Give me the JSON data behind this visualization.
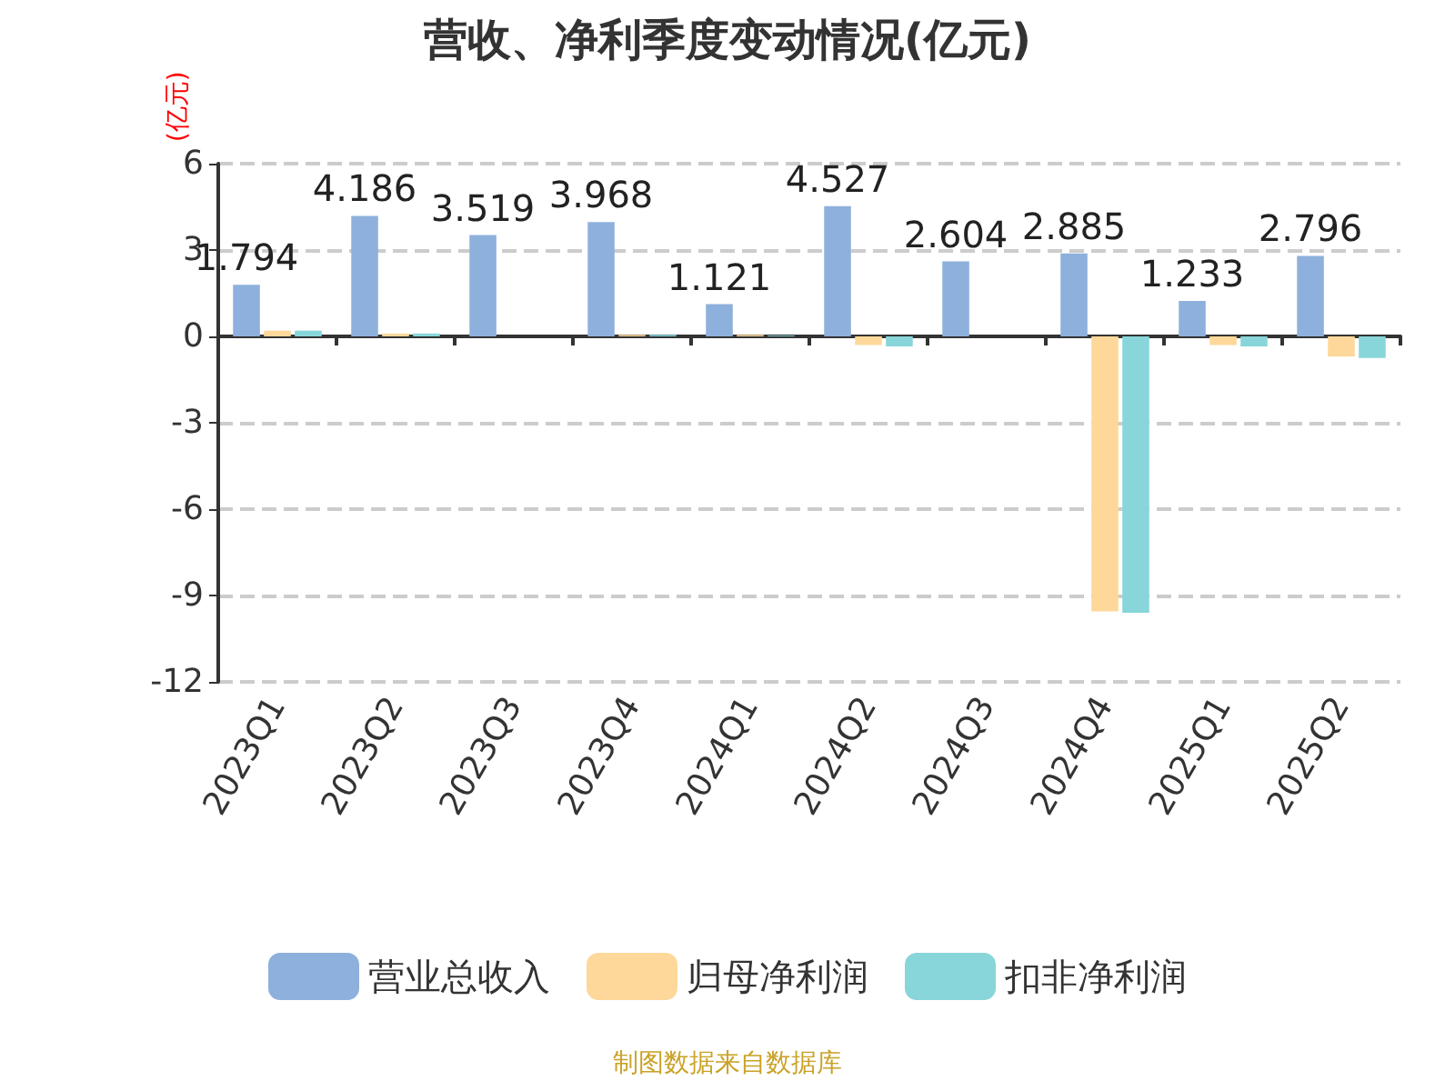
{
  "chart_data": {
    "type": "bar",
    "title": "营收、净利季度变动情况(亿元)",
    "ylabel": "(亿元)",
    "categories": [
      "2023Q1",
      "2023Q2",
      "2023Q3",
      "2023Q4",
      "2024Q1",
      "2024Q2",
      "2024Q3",
      "2024Q4",
      "2025Q1",
      "2025Q2"
    ],
    "series": [
      {
        "name": "营业总收入",
        "color": "#8eb0dc",
        "values": [
          1.794,
          4.186,
          3.519,
          3.968,
          1.121,
          4.527,
          2.604,
          2.885,
          1.233,
          2.796
        ],
        "value_labels": [
          "1.794",
          "4.186",
          "3.519",
          "3.968",
          "1.121",
          "4.527",
          "2.604",
          "2.885",
          "1.233",
          "2.796"
        ]
      },
      {
        "name": "归母净利润",
        "color": "#fdd89a",
        "values": [
          0.2,
          0.1,
          null,
          0.05,
          0.05,
          -0.3,
          null,
          -9.55,
          -0.3,
          -0.7
        ]
      },
      {
        "name": "扣非净利润",
        "color": "#88d6d9",
        "values": [
          0.2,
          0.1,
          null,
          0.05,
          0.03,
          -0.35,
          null,
          -9.6,
          -0.35,
          -0.75
        ]
      }
    ],
    "ylim": [
      -12,
      6
    ],
    "yticks": [
      -12,
      -9,
      -6,
      -3,
      0,
      3,
      6
    ],
    "grid": "y",
    "legend": "bottom",
    "annotations": [
      "制图数据来自数据库"
    ]
  }
}
